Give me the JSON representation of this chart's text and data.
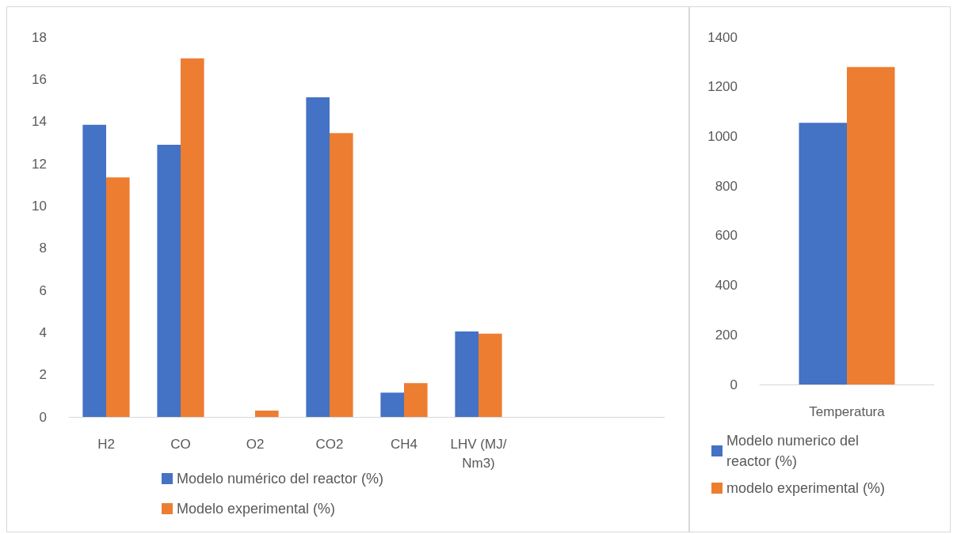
{
  "chart_data": [
    {
      "type": "bar",
      "categories": [
        "H2",
        "CO",
        "O2",
        "CO2",
        "CH4",
        "LHV (MJ/Nm3)",
        null,
        null
      ],
      "series": [
        {
          "name": "Modelo numérico del reactor (%)",
          "color": "#4472c4",
          "values": [
            13.85,
            12.9,
            0,
            15.15,
            1.15,
            4.05,
            null,
            null
          ]
        },
        {
          "name": "Modelo experimental (%)",
          "color": "#ed7d31",
          "values": [
            11.35,
            17.0,
            0.3,
            13.45,
            1.6,
            3.95,
            null,
            null
          ]
        }
      ],
      "ylim": [
        0,
        18
      ],
      "yticks": [
        0,
        2,
        4,
        6,
        8,
        10,
        12,
        14,
        16,
        18
      ],
      "grid": false,
      "legend": "bottom"
    },
    {
      "type": "bar",
      "categories": [
        "Temperatura"
      ],
      "series": [
        {
          "name": "Modelo numerico del reactor (%)",
          "color": "#4472c4",
          "values": [
            1055
          ]
        },
        {
          "name": "modelo experimental (%)",
          "color": "#ed7d31",
          "values": [
            1280
          ]
        }
      ],
      "ylim": [
        0,
        1400
      ],
      "yticks": [
        0,
        200,
        400,
        600,
        800,
        1000,
        1200,
        1400
      ],
      "grid": false,
      "legend": "bottom"
    }
  ]
}
